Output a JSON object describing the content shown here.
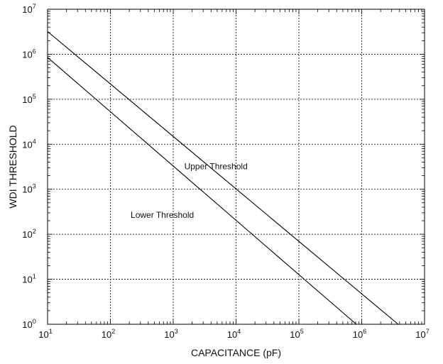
{
  "chart_data": {
    "type": "line",
    "title": "",
    "xlabel": "CAPACITANCE (pF)",
    "ylabel": "WDI THRESHOLD",
    "x_scale": "log",
    "y_scale": "log",
    "xlim": [
      10,
      10000000
    ],
    "ylim": [
      1,
      10000000
    ],
    "grid": true,
    "x_ticks": [
      {
        "base": "10",
        "exp": "1",
        "value": 10
      },
      {
        "base": "10",
        "exp": "2",
        "value": 100
      },
      {
        "base": "10",
        "exp": "3",
        "value": 1000
      },
      {
        "base": "10",
        "exp": "4",
        "value": 10000
      },
      {
        "base": "10",
        "exp": "5",
        "value": 100000
      },
      {
        "base": "10",
        "exp": "6",
        "value": 1000000
      },
      {
        "base": "10",
        "exp": "7",
        "value": 10000000
      }
    ],
    "y_ticks": [
      {
        "base": "10",
        "exp": "0",
        "value": 1
      },
      {
        "base": "10",
        "exp": "1",
        "value": 10
      },
      {
        "base": "10",
        "exp": "2",
        "value": 100
      },
      {
        "base": "10",
        "exp": "3",
        "value": 1000
      },
      {
        "base": "10",
        "exp": "4",
        "value": 10000
      },
      {
        "base": "10",
        "exp": "5",
        "value": 100000
      },
      {
        "base": "10",
        "exp": "6",
        "value": 1000000
      },
      {
        "base": "10",
        "exp": "7",
        "value": 10000000
      }
    ],
    "series": [
      {
        "name": "Upper Threshold",
        "x": [
          10,
          3800000
        ],
        "y": [
          3200000,
          1
        ]
      },
      {
        "name": "Lower Threshold",
        "x": [
          10,
          820000
        ],
        "y": [
          850000,
          1
        ]
      }
    ],
    "line_color": "#000000",
    "grid_color": "#000000"
  }
}
